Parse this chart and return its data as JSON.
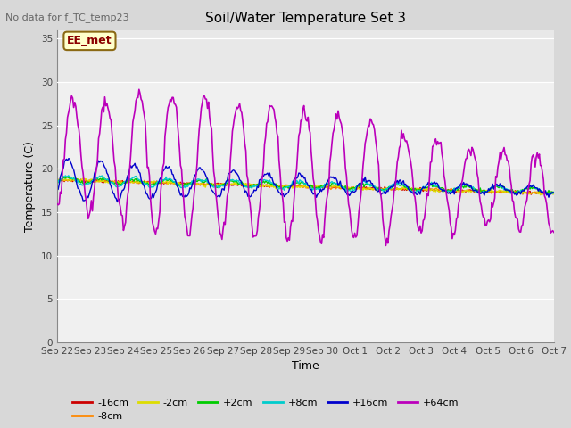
{
  "title": "Soil/Water Temperature Set 3",
  "xlabel": "Time",
  "ylabel": "Temperature (C)",
  "no_data_text": "No data for f_TC_temp23",
  "annotation_label": "EE_met",
  "ylim": [
    0,
    36
  ],
  "yticks": [
    0,
    5,
    10,
    15,
    20,
    25,
    30,
    35
  ],
  "x_labels": [
    "Sep 22",
    "Sep 23",
    "Sep 24",
    "Sep 25",
    "Sep 26",
    "Sep 27",
    "Sep 28",
    "Sep 29",
    "Sep 30",
    "Oct 1",
    "Oct 2",
    "Oct 3",
    "Oct 4",
    "Oct 5",
    "Oct 6",
    "Oct 7"
  ],
  "bg_color": "#d8d8d8",
  "plot_bg_color": "#e8e8e8",
  "band_light_color": "#f0f0f0",
  "series_colors": {
    "-16cm": "#cc0000",
    "-8cm": "#ff8800",
    "-2cm": "#dddd00",
    "+2cm": "#00cc00",
    "+8cm": "#00cccc",
    "+16cm": "#0000cc",
    "+64cm": "#bb00bb"
  },
  "n_points": 480
}
